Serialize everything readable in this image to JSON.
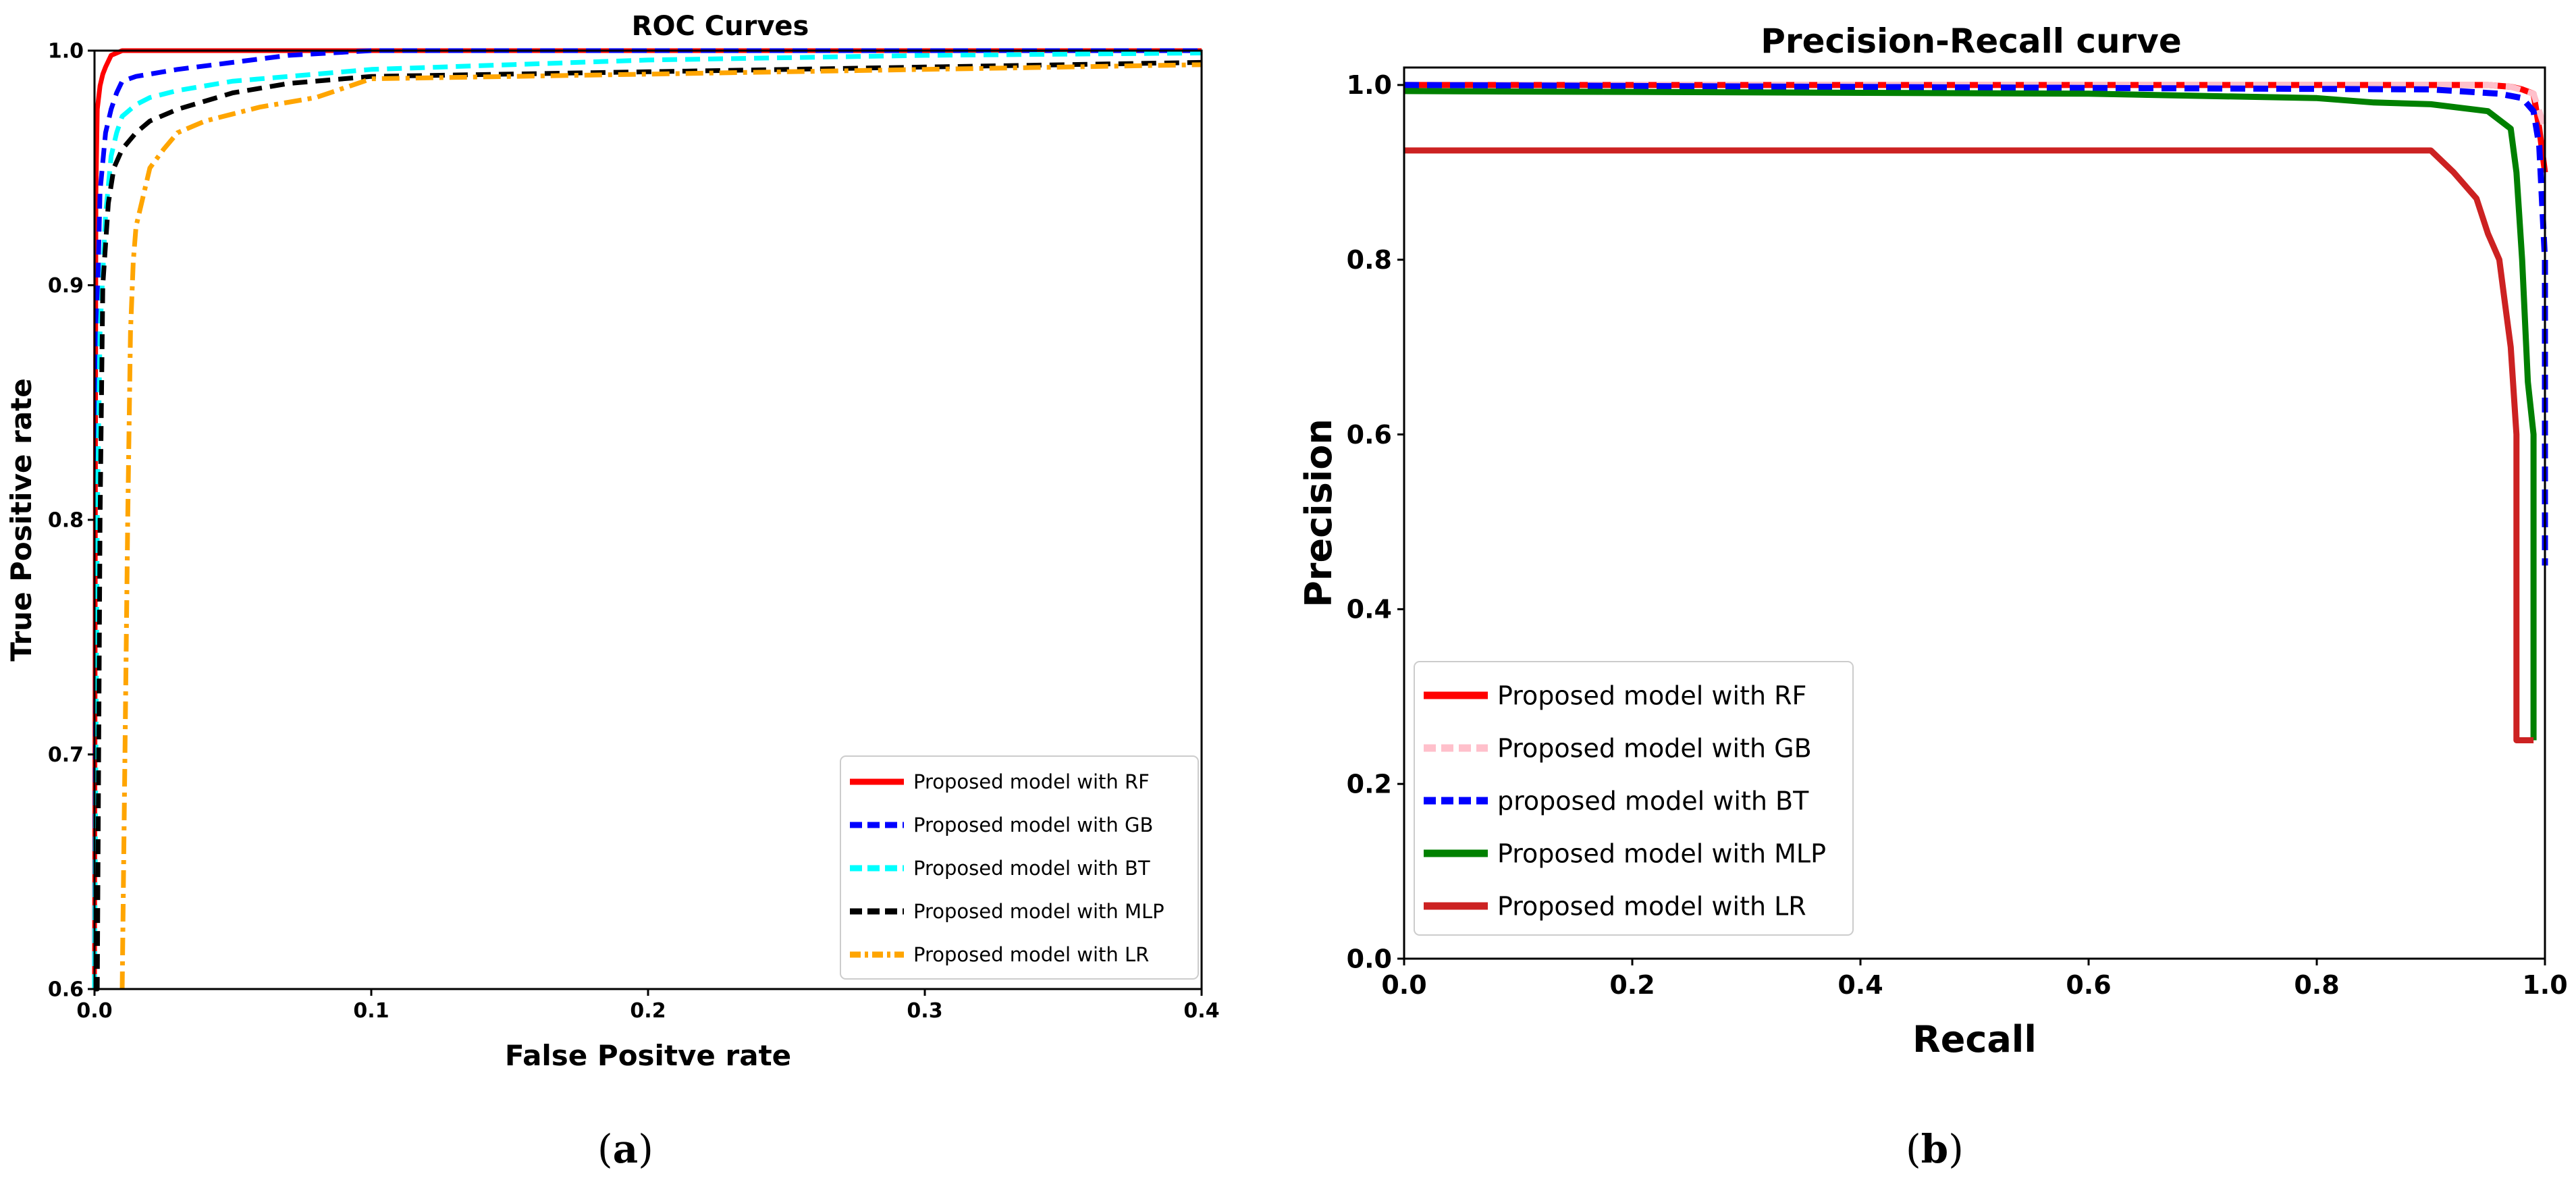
{
  "chart_data": [
    {
      "type": "line",
      "title": "ROC Curves",
      "xlabel": "False Positve rate",
      "ylabel": "True Positive rate",
      "xlim": [
        0.0,
        0.4
      ],
      "ylim": [
        0.6,
        1.0
      ],
      "xticks": [
        "0.0",
        "0.1",
        "0.2",
        "0.3",
        "0.4"
      ],
      "yticks": [
        "0.6",
        "0.7",
        "0.8",
        "0.9",
        "1.0"
      ],
      "legend_position": "bottom-right",
      "caption": "(a)",
      "caption_letter": "a",
      "series": [
        {
          "name": "Proposed model with RF",
          "color": "#ff0000",
          "dash": "solid",
          "x": [
            0,
            0.0005,
            0.001,
            0.002,
            0.003,
            0.004,
            0.006,
            0.01,
            0.4
          ],
          "y": [
            0.6,
            0.94,
            0.975,
            0.985,
            0.99,
            0.993,
            0.998,
            1.0,
            1.0
          ]
        },
        {
          "name": "Proposed model with GB",
          "color": "#0000ff",
          "dash": "dash",
          "x": [
            0,
            0.001,
            0.002,
            0.004,
            0.006,
            0.008,
            0.01,
            0.015,
            0.03,
            0.05,
            0.07,
            0.1,
            0.4
          ],
          "y": [
            0.6,
            0.89,
            0.94,
            0.965,
            0.975,
            0.982,
            0.987,
            0.989,
            0.992,
            0.995,
            0.998,
            1.0,
            1.0
          ]
        },
        {
          "name": "Proposed model with BT",
          "color": "#00ffff",
          "dash": "dash",
          "x": [
            0,
            0.001,
            0.002,
            0.004,
            0.006,
            0.008,
            0.01,
            0.015,
            0.02,
            0.03,
            0.05,
            0.08,
            0.1,
            0.2,
            0.3,
            0.4
          ],
          "y": [
            0.6,
            0.8,
            0.88,
            0.93,
            0.955,
            0.965,
            0.972,
            0.977,
            0.98,
            0.983,
            0.987,
            0.99,
            0.992,
            0.996,
            0.998,
            0.999
          ]
        },
        {
          "name": "Proposed model with MLP",
          "color": "#000000",
          "dash": "dash",
          "x": [
            0,
            0.001,
            0.002,
            0.003,
            0.005,
            0.007,
            0.01,
            0.015,
            0.02,
            0.03,
            0.05,
            0.07,
            0.1,
            0.2,
            0.3,
            0.4
          ],
          "y": [
            0.6,
            0.6,
            0.8,
            0.9,
            0.935,
            0.95,
            0.958,
            0.965,
            0.97,
            0.975,
            0.982,
            0.986,
            0.989,
            0.991,
            0.993,
            0.995
          ]
        },
        {
          "name": "Proposed model with LR",
          "color": "#ffa500",
          "dash": "dashdot",
          "x": [
            0.01,
            0.011,
            0.012,
            0.013,
            0.014,
            0.015,
            0.017,
            0.02,
            0.025,
            0.03,
            0.04,
            0.05,
            0.06,
            0.07,
            0.08,
            0.09,
            0.1,
            0.2,
            0.3,
            0.4
          ],
          "y": [
            0.6,
            0.7,
            0.8,
            0.88,
            0.91,
            0.925,
            0.935,
            0.95,
            0.958,
            0.965,
            0.97,
            0.973,
            0.976,
            0.978,
            0.98,
            0.984,
            0.988,
            0.99,
            0.992,
            0.994
          ]
        }
      ]
    },
    {
      "type": "line",
      "title": "Precision-Recall curve",
      "xlabel": "Recall",
      "ylabel": "Precision",
      "xlim": [
        0.0,
        1.0
      ],
      "ylim": [
        0.0,
        1.02
      ],
      "xticks": [
        "0.0",
        "0.2",
        "0.4",
        "0.6",
        "0.8",
        "1.0"
      ],
      "yticks": [
        "0.0",
        "0.2",
        "0.4",
        "0.6",
        "0.8",
        "1.0"
      ],
      "legend_position": "bottom-left",
      "caption": "(b)",
      "caption_letter": "b",
      "series": [
        {
          "name": "Proposed model with RF",
          "color": "#ff0000",
          "dash": "solid",
          "x": [
            0,
            0.95,
            0.97,
            0.98,
            0.99,
            0.995,
            1.0
          ],
          "y": [
            1.0,
            1.0,
            0.998,
            0.995,
            0.99,
            0.95,
            0.9
          ]
        },
        {
          "name": "Proposed model with GB",
          "color": "#ffc0cb",
          "dash": "dash",
          "x": [
            0,
            0.95,
            0.97,
            0.99,
            1.0
          ],
          "y": [
            1.0,
            1.0,
            0.998,
            0.99,
            0.95
          ]
        },
        {
          "name": "proposed model with BT",
          "color": "#0000ff",
          "dash": "dash",
          "x": [
            0,
            0.9,
            0.96,
            0.98,
            0.99,
            0.995,
            1.0,
            1.0
          ],
          "y": [
            1.0,
            0.995,
            0.99,
            0.985,
            0.97,
            0.93,
            0.8,
            0.45
          ]
        },
        {
          "name": "Proposed model with MLP",
          "color": "#008000",
          "dash": "solid",
          "x": [
            0,
            0.6,
            0.8,
            0.85,
            0.9,
            0.95,
            0.97,
            0.975,
            0.98,
            0.985,
            0.985,
            0.99,
            0.99
          ],
          "y": [
            0.993,
            0.99,
            0.985,
            0.98,
            0.978,
            0.97,
            0.95,
            0.9,
            0.8,
            0.66,
            0.66,
            0.6,
            0.25
          ]
        },
        {
          "name": "Proposed model with LR",
          "color": "#cc2222",
          "dash": "solid",
          "x": [
            0,
            0.9,
            0.92,
            0.94,
            0.95,
            0.96,
            0.965,
            0.97,
            0.975,
            0.975,
            0.99
          ],
          "y": [
            0.925,
            0.925,
            0.9,
            0.87,
            0.83,
            0.8,
            0.75,
            0.7,
            0.6,
            0.25,
            0.25
          ]
        }
      ]
    }
  ]
}
